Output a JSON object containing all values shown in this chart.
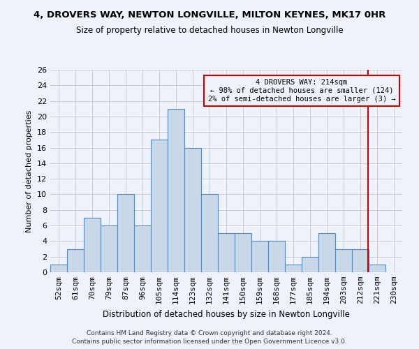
{
  "title": "4, DROVERS WAY, NEWTON LONGVILLE, MILTON KEYNES, MK17 0HR",
  "subtitle": "Size of property relative to detached houses in Newton Longville",
  "xlabel": "Distribution of detached houses by size in Newton Longville",
  "ylabel": "Number of detached properties",
  "categories": [
    "52sqm",
    "61sqm",
    "70sqm",
    "79sqm",
    "87sqm",
    "96sqm",
    "105sqm",
    "114sqm",
    "123sqm",
    "132sqm",
    "141sqm",
    "150sqm",
    "159sqm",
    "168sqm",
    "177sqm",
    "185sqm",
    "194sqm",
    "203sqm",
    "212sqm",
    "221sqm",
    "230sqm"
  ],
  "values": [
    1,
    3,
    7,
    6,
    10,
    6,
    17,
    21,
    16,
    10,
    5,
    5,
    4,
    4,
    1,
    2,
    5,
    3,
    3,
    1,
    0
  ],
  "bar_color": "#c8d8e8",
  "bar_edge_color": "#5588bb",
  "grid_color": "#cccccc",
  "annotation_line1": "4 DROVERS WAY: 214sqm",
  "annotation_line2": "← 98% of detached houses are smaller (124)",
  "annotation_line3": "2% of semi-detached houses are larger (3) →",
  "annotation_box_color": "#cc0000",
  "vline_x_index": 18.45,
  "ylim": [
    0,
    26
  ],
  "yticks": [
    0,
    2,
    4,
    6,
    8,
    10,
    12,
    14,
    16,
    18,
    20,
    22,
    24,
    26
  ],
  "footer_line1": "Contains HM Land Registry data © Crown copyright and database right 2024.",
  "footer_line2": "Contains public sector information licensed under the Open Government Licence v3.0.",
  "background_color": "#eef2fa"
}
